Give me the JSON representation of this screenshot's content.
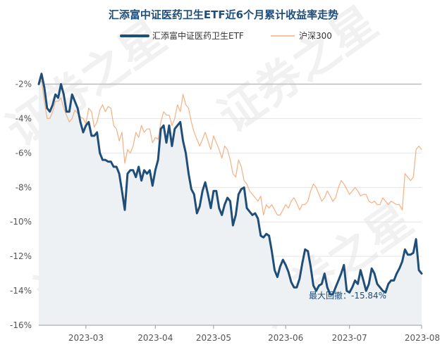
{
  "chart_data": {
    "type": "line",
    "title": "汇添富中证医药卫生ETF近6个月累计收益率走势",
    "xlabel": "",
    "ylabel": "",
    "ylim": [
      -16,
      -1
    ],
    "yticks": [
      -2,
      -4,
      -6,
      -8,
      -10,
      -12,
      -14,
      -16
    ],
    "ytick_labels": [
      "-2%",
      "-4%",
      "-6%",
      "-8%",
      "-10%",
      "-12%",
      "-14%",
      "-16%"
    ],
    "xticks": [
      "2023-03",
      "2023-04",
      "2023-05",
      "2023-06",
      "2023-07",
      "2023-08"
    ],
    "xtick_positions": [
      17,
      42,
      63,
      89,
      112,
      138
    ],
    "x_range": [
      0,
      138
    ],
    "grid": "horizontal",
    "legend_position": "top",
    "series": [
      {
        "name": "汇添富中证医药卫生ETF",
        "color": "#1f4e79",
        "filled": true,
        "x": [
          0,
          1,
          2,
          3,
          4,
          5,
          6,
          7,
          8,
          9,
          10,
          11,
          12,
          13,
          14,
          15,
          16,
          17,
          18,
          19,
          20,
          21,
          22,
          23,
          24,
          25,
          26,
          27,
          28,
          29,
          30,
          31,
          32,
          33,
          34,
          35,
          36,
          37,
          38,
          39,
          40,
          41,
          42,
          43,
          44,
          45,
          46,
          47,
          48,
          49,
          50,
          51,
          52,
          53,
          54,
          55,
          56,
          57,
          58,
          59,
          60,
          61,
          62,
          63,
          64,
          65,
          66,
          67,
          68,
          69,
          70,
          71,
          72,
          73,
          74,
          75,
          76,
          77,
          78,
          79,
          80,
          81,
          82,
          83,
          84,
          85,
          86,
          87,
          88,
          89,
          90,
          91,
          92,
          93,
          94,
          95,
          96,
          97,
          98,
          99,
          100,
          101,
          102,
          103,
          104,
          105,
          106,
          107,
          108,
          109,
          110,
          111,
          112,
          113,
          114,
          115,
          116,
          117,
          118,
          119,
          120,
          121,
          122,
          123,
          124,
          125,
          126,
          127,
          128,
          129,
          130,
          131,
          132,
          133,
          134,
          135,
          136,
          137,
          138
        ],
        "values": [
          -2.0,
          -1.4,
          -2.2,
          -3.4,
          -3.6,
          -3.2,
          -2.6,
          -2.8,
          -2.0,
          -2.6,
          -3.6,
          -3.6,
          -2.6,
          -3.0,
          -3.4,
          -4.2,
          -4.8,
          -4.4,
          -4.2,
          -5.0,
          -5.0,
          -4.8,
          -6.0,
          -6.4,
          -6.4,
          -6.5,
          -6.5,
          -6.8,
          -6.8,
          -7.2,
          -8.2,
          -9.3,
          -7.2,
          -7.0,
          -7.0,
          -7.4,
          -6.8,
          -7.6,
          -7.0,
          -7.2,
          -7.0,
          -7.9,
          -7.0,
          -6.4,
          -4.6,
          -4.4,
          -5.4,
          -4.4,
          -5.6,
          -4.6,
          -4.4,
          -4.2,
          -5.3,
          -6.0,
          -7.2,
          -8.1,
          -8.4,
          -9.5,
          -9.1,
          -8.2,
          -7.7,
          -8.4,
          -9.2,
          -8.2,
          -8.2,
          -9.2,
          -9.6,
          -9.0,
          -8.6,
          -8.8,
          -10.2,
          -9.6,
          -8.4,
          -8.1,
          -8.0,
          -9.2,
          -9.4,
          -9.6,
          -9.5,
          -9.8,
          -10.8,
          -10.9,
          -10.7,
          -10.8,
          -11.7,
          -12.8,
          -13.2,
          -12.6,
          -12.2,
          -12.5,
          -12.9,
          -13.5,
          -13.8,
          -13.8,
          -13.3,
          -12.4,
          -11.6,
          -11.7,
          -12.6,
          -13.7,
          -14.0,
          -13.7,
          -13.6,
          -13.0,
          -13.8,
          -14.2,
          -14.2,
          -13.8,
          -13.4,
          -13.0,
          -12.5,
          -14.0,
          -14.1,
          -13.8,
          -13.4,
          -13.6,
          -12.8,
          -13.4,
          -14.0,
          -13.6,
          -12.7,
          -13.0,
          -13.6,
          -13.8,
          -14.0,
          -14.1,
          -13.6,
          -13.4,
          -13.4,
          -13.0,
          -12.7,
          -12.3,
          -11.6,
          -11.9,
          -11.9,
          -11.8,
          -11.0,
          -12.8,
          -13.0
        ]
      },
      {
        "name": "沪深300",
        "color": "#f4b183",
        "filled": false,
        "x": [
          0,
          1,
          2,
          3,
          4,
          5,
          6,
          7,
          8,
          9,
          10,
          11,
          12,
          13,
          14,
          15,
          16,
          17,
          18,
          19,
          20,
          21,
          22,
          23,
          24,
          25,
          26,
          27,
          28,
          29,
          30,
          31,
          32,
          33,
          34,
          35,
          36,
          37,
          38,
          39,
          40,
          41,
          42,
          43,
          44,
          45,
          46,
          47,
          48,
          49,
          50,
          51,
          52,
          53,
          54,
          55,
          56,
          57,
          58,
          59,
          60,
          61,
          62,
          63,
          64,
          65,
          66,
          67,
          68,
          69,
          70,
          71,
          72,
          73,
          74,
          75,
          76,
          77,
          78,
          79,
          80,
          81,
          82,
          83,
          84,
          85,
          86,
          87,
          88,
          89,
          90,
          91,
          92,
          93,
          94,
          95,
          96,
          97,
          98,
          99,
          100,
          101,
          102,
          103,
          104,
          105,
          106,
          107,
          108,
          109,
          110,
          111,
          112,
          113,
          114,
          115,
          116,
          117,
          118,
          119,
          120,
          121,
          122,
          123,
          124,
          125,
          126,
          127,
          128,
          129,
          130,
          131,
          132,
          133,
          134,
          135,
          136,
          137,
          138
        ],
        "values": [
          -2.0,
          -1.8,
          -3.0,
          -4.0,
          -4.0,
          -3.6,
          -3.0,
          -3.0,
          -2.8,
          -3.4,
          -3.8,
          -4.2,
          -4.0,
          -3.5,
          -3.7,
          -3.9,
          -4.0,
          -4.3,
          -3.4,
          -3.6,
          -4.5,
          -4.2,
          -3.5,
          -3.2,
          -3.6,
          -3.3,
          -3.4,
          -4.4,
          -4.6,
          -5.3,
          -4.8,
          -6.6,
          -5.8,
          -6.0,
          -5.6,
          -4.8,
          -5.1,
          -4.4,
          -4.8,
          -4.6,
          -4.6,
          -5.4,
          -5.1,
          -5.2,
          -4.2,
          -3.6,
          -3.8,
          -3.8,
          -4.4,
          -4.0,
          -3.2,
          -3.6,
          -2.6,
          -3.2,
          -3.4,
          -4.2,
          -4.8,
          -5.2,
          -5.6,
          -5.2,
          -4.8,
          -5.3,
          -5.8,
          -5.0,
          -5.4,
          -5.8,
          -6.3,
          -5.6,
          -5.8,
          -6.4,
          -7.2,
          -7.4,
          -6.4,
          -6.8,
          -7.6,
          -7.8,
          -8.2,
          -8.4,
          -8.6,
          -8.8,
          -8.5,
          -9.6,
          -9.0,
          -9.2,
          -9.0,
          -9.3,
          -9.6,
          -9.6,
          -9.3,
          -9.0,
          -9.2,
          -8.8,
          -8.6,
          -8.9,
          -9.3,
          -9.0,
          -9.0,
          -8.8,
          -8.2,
          -7.8,
          -8.0,
          -8.4,
          -8.8,
          -8.6,
          -8.2,
          -8.5,
          -8.8,
          -8.6,
          -8.0,
          -7.6,
          -7.8,
          -8.1,
          -8.4,
          -8.2,
          -8.0,
          -8.2,
          -8.5,
          -8.4,
          -8.4,
          -8.8,
          -8.9,
          -8.8,
          -9.0,
          -9.0,
          -8.6,
          -8.8,
          -9.0,
          -8.8,
          -8.9,
          -9.0,
          -9.0,
          -9.3,
          -7.2,
          -7.4,
          -7.6,
          -7.4,
          -5.8,
          -5.6,
          -5.8
        ]
      }
    ],
    "annotations": [
      {
        "text": "最大回撤：-15.84%"
      }
    ]
  },
  "watermark": "证券之星",
  "colors": {
    "title": "#1f4e79",
    "fund_line": "#1f4e79",
    "fund_fill": "#eef1f4",
    "index_line": "#f4b183",
    "grid": "#e4e4e4",
    "baseline": "#bbbbbb"
  }
}
